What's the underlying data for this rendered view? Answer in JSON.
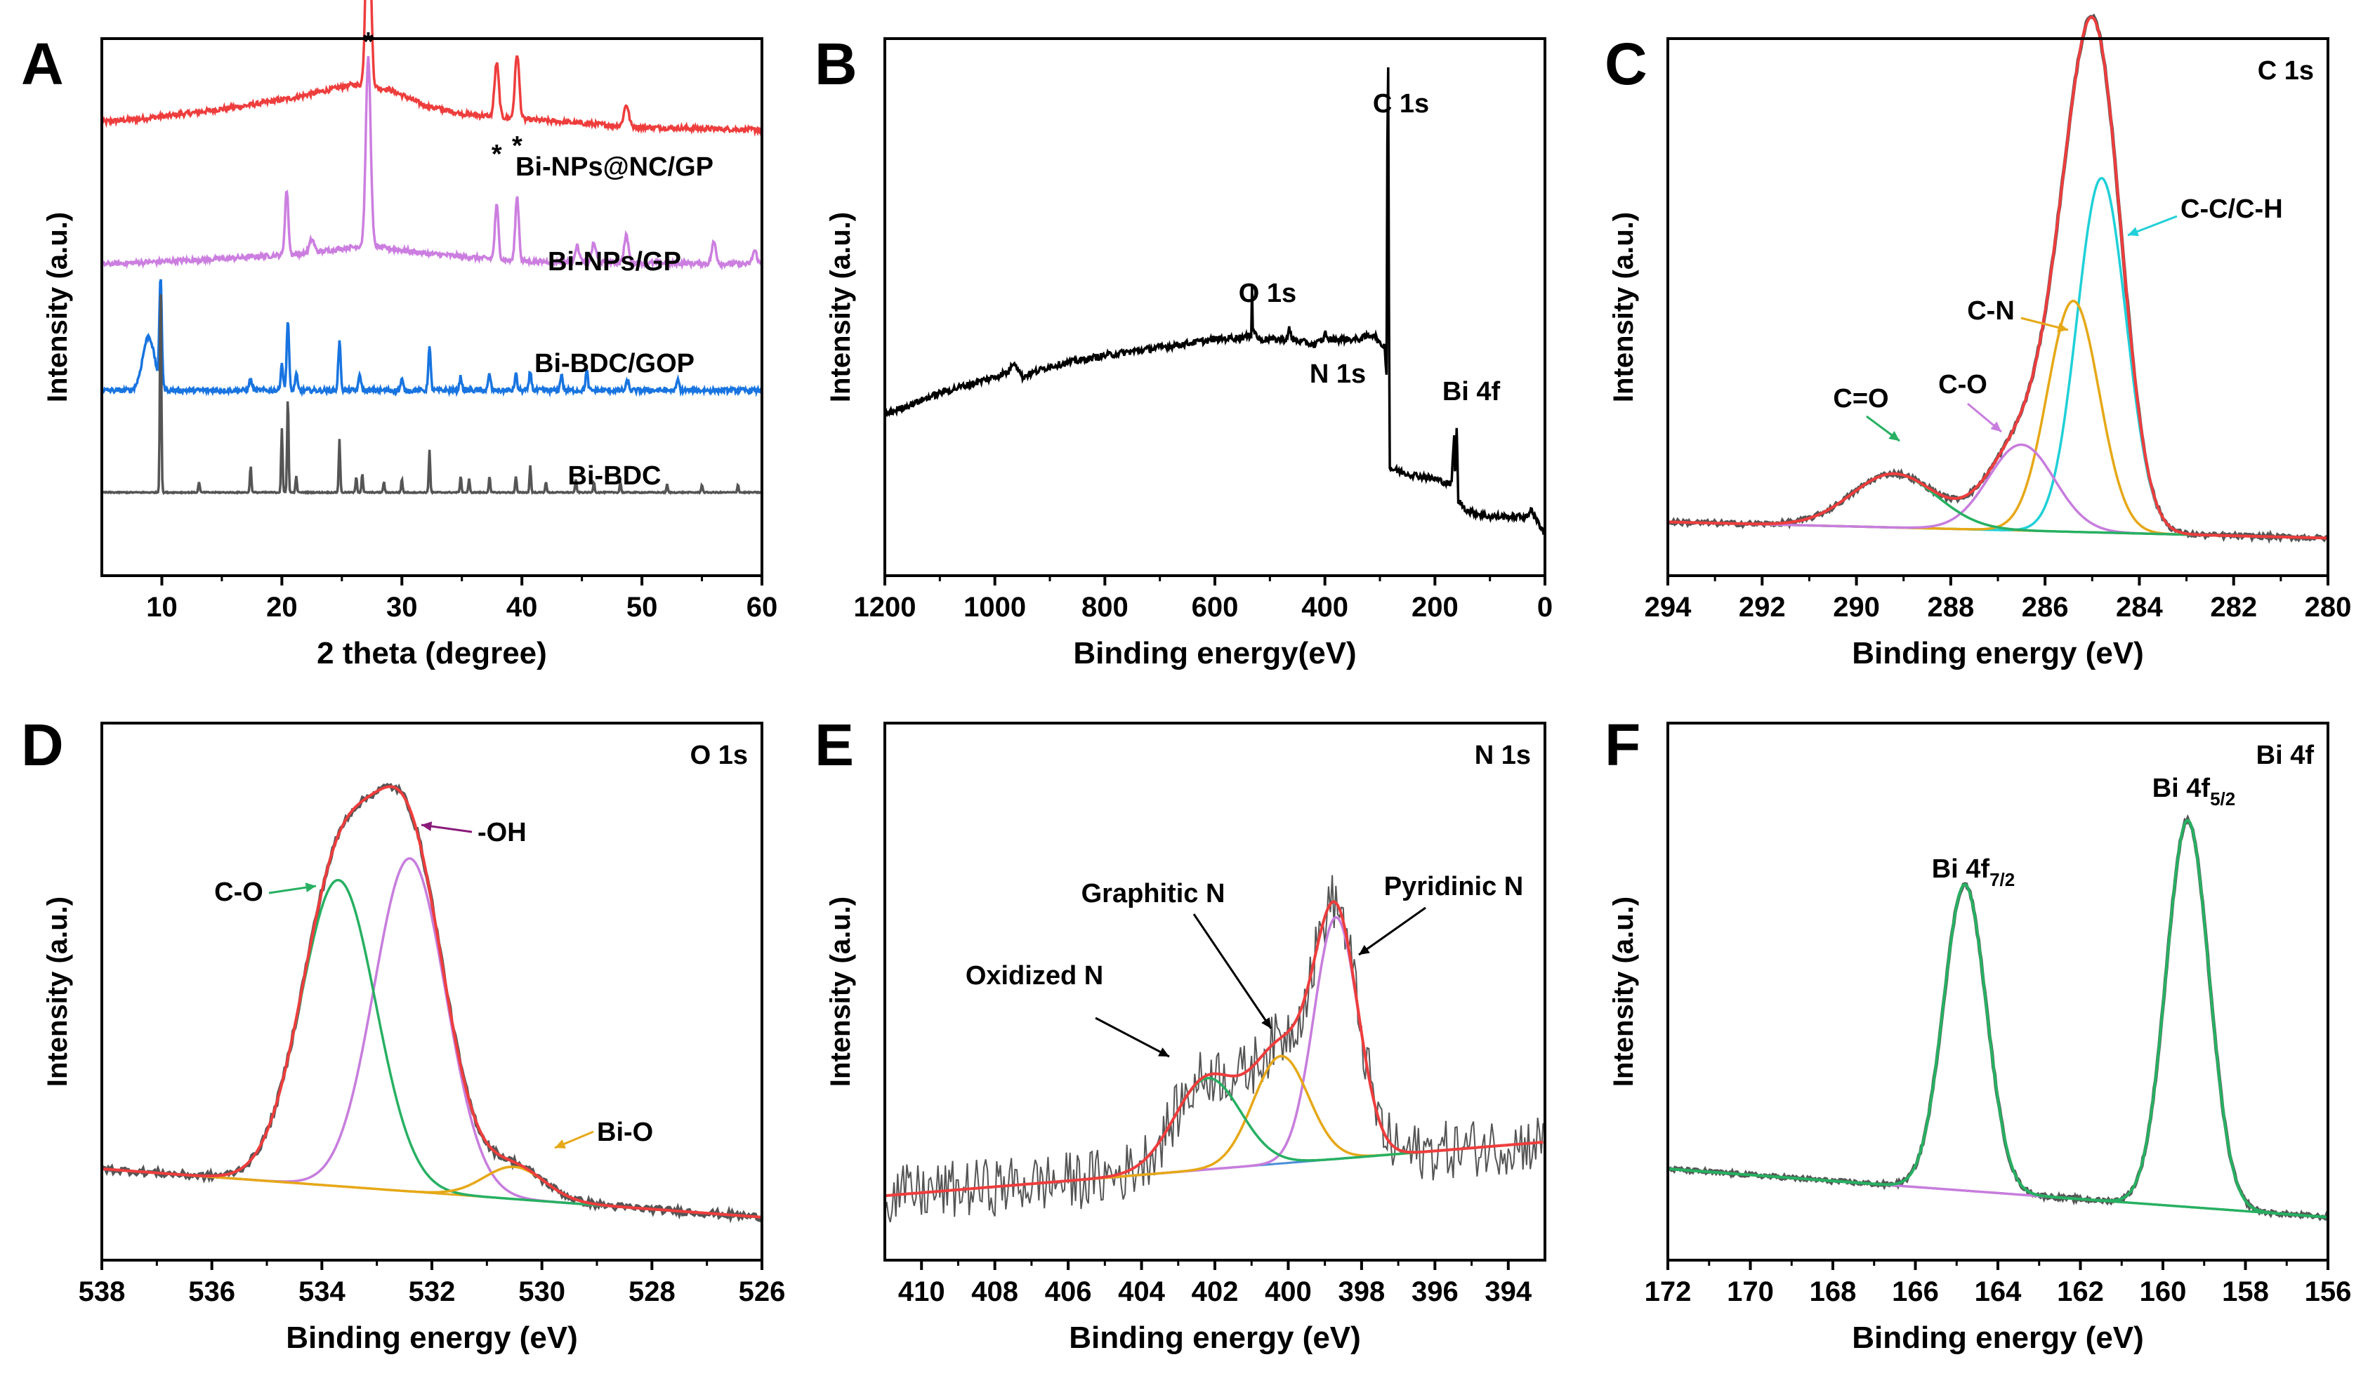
{
  "chart_data": [
    {
      "id": "A",
      "type": "line",
      "title": "",
      "xlabel": "2 theta (degree)",
      "ylabel": "Intensity (a.u.)",
      "xlim": [
        5,
        60
      ],
      "xticks": [
        10,
        20,
        30,
        40,
        50,
        60
      ],
      "series": [
        {
          "name": "Bi-NPs@NC/GP",
          "color": "#ee3d3d",
          "baseline": 0.815,
          "bg": [
            [
              5,
              0.03
            ],
            [
              8,
              0.035
            ],
            [
              12,
              0.045
            ],
            [
              17,
              0.06
            ],
            [
              21,
              0.075
            ],
            [
              24,
              0.09
            ],
            [
              26,
              0.1
            ],
            [
              29,
              0.09
            ],
            [
              32,
              0.06
            ],
            [
              35,
              0.045
            ],
            [
              40,
              0.035
            ],
            [
              50,
              0.02
            ],
            [
              60,
              0.015
            ]
          ],
          "peaks": [
            [
              27.2,
              0.4,
              0.2
            ],
            [
              37.9,
              0.1,
              0.18
            ],
            [
              39.6,
              0.12,
              0.18
            ],
            [
              48.7,
              0.04,
              0.2
            ]
          ]
        },
        {
          "name": "Bi-NPs/GP",
          "color": "#cc7ee0",
          "baseline": 0.58,
          "bg": [
            [
              5,
              0.0
            ],
            [
              15,
              0.01
            ],
            [
              22,
              0.02
            ],
            [
              27,
              0.035
            ],
            [
              32,
              0.02
            ],
            [
              40,
              0.005
            ],
            [
              60,
              0.0
            ]
          ],
          "peaks": [
            [
              20.4,
              0.12,
              0.14
            ],
            [
              22.5,
              0.025,
              0.2
            ],
            [
              27.2,
              0.35,
              0.2
            ],
            [
              37.9,
              0.1,
              0.15
            ],
            [
              39.6,
              0.12,
              0.15
            ],
            [
              44.6,
              0.03,
              0.18
            ],
            [
              46.0,
              0.035,
              0.18
            ],
            [
              48.7,
              0.05,
              0.18
            ],
            [
              56.0,
              0.04,
              0.18
            ],
            [
              59.4,
              0.025,
              0.18
            ]
          ]
        },
        {
          "name": "Bi-BDC/GOP",
          "color": "#1874e0",
          "baseline": 0.345,
          "bg": [
            [
              5,
              0.0
            ],
            [
              20,
              0.0
            ],
            [
              60,
              0.0
            ]
          ],
          "peaks": [
            [
              8.9,
              0.1,
              0.5
            ],
            [
              9.9,
              0.2,
              0.1
            ],
            [
              17.4,
              0.02,
              0.12
            ],
            [
              20.0,
              0.05,
              0.1
            ],
            [
              20.5,
              0.13,
              0.1
            ],
            [
              21.2,
              0.03,
              0.1
            ],
            [
              24.8,
              0.09,
              0.1
            ],
            [
              26.5,
              0.03,
              0.1
            ],
            [
              30.0,
              0.02,
              0.1
            ],
            [
              32.3,
              0.08,
              0.1
            ],
            [
              34.9,
              0.025,
              0.1
            ],
            [
              37.3,
              0.03,
              0.1
            ],
            [
              39.5,
              0.03,
              0.1
            ],
            [
              40.7,
              0.035,
              0.1
            ],
            [
              43.3,
              0.03,
              0.1
            ],
            [
              45.4,
              0.035,
              0.1
            ],
            [
              48.8,
              0.02,
              0.1
            ],
            [
              53.0,
              0.02,
              0.1
            ]
          ]
        },
        {
          "name": "Bi-BDC",
          "color": "#555555",
          "baseline": 0.155,
          "bg": [
            [
              5,
              0.0
            ],
            [
              60,
              0.0
            ]
          ],
          "peaks": [
            [
              9.9,
              0.39,
              0.06
            ],
            [
              13.1,
              0.02,
              0.06
            ],
            [
              17.4,
              0.05,
              0.06
            ],
            [
              20.0,
              0.12,
              0.06
            ],
            [
              20.5,
              0.18,
              0.06
            ],
            [
              21.2,
              0.03,
              0.06
            ],
            [
              24.8,
              0.1,
              0.06
            ],
            [
              26.2,
              0.03,
              0.06
            ],
            [
              26.7,
              0.035,
              0.06
            ],
            [
              28.5,
              0.02,
              0.06
            ],
            [
              30.0,
              0.025,
              0.06
            ],
            [
              32.3,
              0.08,
              0.06
            ],
            [
              34.9,
              0.03,
              0.06
            ],
            [
              35.6,
              0.025,
              0.06
            ],
            [
              37.3,
              0.03,
              0.06
            ],
            [
              39.5,
              0.03,
              0.06
            ],
            [
              40.7,
              0.05,
              0.06
            ],
            [
              42.0,
              0.02,
              0.06
            ],
            [
              44.5,
              0.025,
              0.06
            ],
            [
              46.0,
              0.02,
              0.06
            ],
            [
              48.2,
              0.02,
              0.06
            ],
            [
              52.1,
              0.015,
              0.06
            ],
            [
              55.0,
              0.015,
              0.06
            ],
            [
              58.0,
              0.015,
              0.06
            ]
          ]
        }
      ],
      "series_labels": [
        "Bi-NPs@NC/GP",
        "Bi-NPs/GP",
        "Bi-BDC/GOP",
        "Bi-BDC"
      ],
      "markers": [
        {
          "text": "*",
          "x": 27.2
        },
        {
          "text": "*",
          "x": 37.9
        },
        {
          "text": "*",
          "x": 39.6
        }
      ]
    },
    {
      "id": "B",
      "type": "line",
      "title": "",
      "xlabel": "Binding energy(eV)",
      "ylabel": "Intensity (a.u.)",
      "xlim": [
        1200,
        0
      ],
      "xticks": [
        1200,
        1000,
        800,
        600,
        400,
        200,
        0
      ],
      "series": [
        {
          "name": "survey",
          "color": "#000000",
          "points": [
            [
              1200,
              0.3
            ],
            [
              1100,
              0.34
            ],
            [
              1000,
              0.37
            ],
            [
              975,
              0.38
            ],
            [
              965,
              0.4
            ],
            [
              950,
              0.37
            ],
            [
              900,
              0.39
            ],
            [
              800,
              0.41
            ],
            [
              700,
              0.425
            ],
            [
              600,
              0.44
            ],
            [
              540,
              0.445
            ],
            [
              533,
              0.45
            ],
            [
              532,
              0.64
            ],
            [
              531,
              0.46
            ],
            [
              520,
              0.44
            ],
            [
              500,
              0.44
            ],
            [
              470,
              0.44
            ],
            [
              465,
              0.46
            ],
            [
              460,
              0.44
            ],
            [
              420,
              0.43
            ],
            [
              402,
              0.44
            ],
            [
              399,
              0.46
            ],
            [
              396,
              0.44
            ],
            [
              340,
              0.44
            ],
            [
              310,
              0.45
            ],
            [
              300,
              0.43
            ],
            [
              292,
              0.43
            ],
            [
              288,
              0.38
            ],
            [
              286,
              0.95
            ],
            [
              284.6,
              0.95
            ],
            [
              283,
              0.3
            ],
            [
              282,
              0.2
            ],
            [
              250,
              0.19
            ],
            [
              200,
              0.18
            ],
            [
              170,
              0.17
            ],
            [
              165,
              0.26
            ],
            [
              163,
              0.18
            ],
            [
              160,
              0.29
            ],
            [
              158,
              0.14
            ],
            [
              140,
              0.12
            ],
            [
              100,
              0.11
            ],
            [
              80,
              0.11
            ],
            [
              30,
              0.11
            ],
            [
              25,
              0.13
            ],
            [
              20,
              0.11
            ],
            [
              0,
              0.08
            ]
          ]
        }
      ],
      "labels": [
        {
          "text": "O 1s",
          "x": 532
        },
        {
          "text": "N 1s",
          "x": 400
        },
        {
          "text": "C 1s",
          "x": 285
        },
        {
          "text": "Bi 4f",
          "x": 160
        }
      ]
    },
    {
      "id": "C",
      "type": "line",
      "title": "C 1s",
      "xlabel": "Binding energy (eV)",
      "ylabel": "Intensity (a.u.)",
      "xlim": [
        294,
        280
      ],
      "xticks": [
        294,
        292,
        290,
        288,
        286,
        284,
        282,
        280
      ],
      "baseline": [
        0.1,
        0.07
      ],
      "components": [
        {
          "name": "C-C/C-H",
          "center": 284.8,
          "height": 0.66,
          "sigma": 0.52,
          "color": "#1fd0d8"
        },
        {
          "name": "C-N",
          "center": 285.4,
          "height": 0.43,
          "sigma": 0.55,
          "color": "#e6a817"
        },
        {
          "name": "C-O",
          "center": 286.5,
          "height": 0.16,
          "sigma": 0.7,
          "color": "#c77ddd"
        },
        {
          "name": "C=O",
          "center": 289.2,
          "height": 0.1,
          "sigma": 0.9,
          "color": "#27b062"
        }
      ],
      "envelope_color": "#ee3d3d",
      "labels": [
        "C=O",
        "C-O",
        "C-N",
        "C-C/C-H"
      ]
    },
    {
      "id": "D",
      "type": "line",
      "title": "O 1s",
      "xlabel": "Binding energy (eV)",
      "ylabel": "Intensity (a.u.)",
      "xlim": [
        538,
        526
      ],
      "xticks": [
        538,
        536,
        534,
        532,
        530,
        528,
        526
      ],
      "baseline": [
        0.17,
        0.08
      ],
      "components": [
        {
          "name": "-OH",
          "center": 532.4,
          "height": 0.62,
          "sigma": 0.65,
          "color": "#c77ddd"
        },
        {
          "name": "C-O",
          "center": 533.7,
          "height": 0.57,
          "sigma": 0.68,
          "color": "#27b062"
        },
        {
          "name": "Bi-O",
          "center": 530.5,
          "height": 0.06,
          "sigma": 0.55,
          "color": "#e6a817"
        }
      ],
      "envelope_color": "#ee3d3d",
      "labels": [
        "C-O",
        "-OH",
        "Bi-O"
      ]
    },
    {
      "id": "E",
      "type": "line",
      "title": "N 1s",
      "xlabel": "Binding energy (eV)",
      "ylabel": "Intensity (a.u.)",
      "xlim": [
        411,
        393
      ],
      "xticks": [
        410,
        408,
        406,
        404,
        402,
        400,
        398,
        396,
        394
      ],
      "baseline": [
        0.12,
        0.22
      ],
      "components": [
        {
          "name": "Pyridinic N",
          "center": 398.7,
          "height": 0.45,
          "sigma": 0.6,
          "color": "#c77ddd"
        },
        {
          "name": "Graphitic N",
          "center": 400.2,
          "height": 0.2,
          "sigma": 0.75,
          "color": "#e6a817"
        },
        {
          "name": "Oxidized N",
          "center": 402.2,
          "height": 0.17,
          "sigma": 0.9,
          "color": "#27b062"
        }
      ],
      "envelope_color": "#ee3d3d",
      "baseline_color": "#4a8ed8",
      "labels": [
        "Oxidized N",
        "Graphitic N",
        "Pyridinic N"
      ]
    },
    {
      "id": "F",
      "type": "line",
      "title": "Bi 4f",
      "xlabel": "Binding energy (eV)",
      "ylabel": "Intensity (a.u.)",
      "xlim": [
        172,
        156
      ],
      "xticks": [
        172,
        170,
        168,
        166,
        164,
        162,
        160,
        158,
        156
      ],
      "baseline": [
        0.17,
        0.08
      ],
      "components": [
        {
          "name": "Bi 4f5/2",
          "center": 159.4,
          "height": 0.72,
          "sigma": 0.52,
          "color": "#c77ddd"
        },
        {
          "name": "Bi 4f7/2",
          "center": 164.8,
          "height": 0.57,
          "sigma": 0.52,
          "color": "#27b062"
        }
      ],
      "envelope_color": "#27b062",
      "labels": [
        {
          "main": "Bi 4f",
          "sub": "5/2"
        },
        {
          "main": "Bi 4f",
          "sub": "7/2"
        }
      ]
    }
  ],
  "panel_letters": [
    "A",
    "B",
    "C",
    "D",
    "E",
    "F"
  ]
}
